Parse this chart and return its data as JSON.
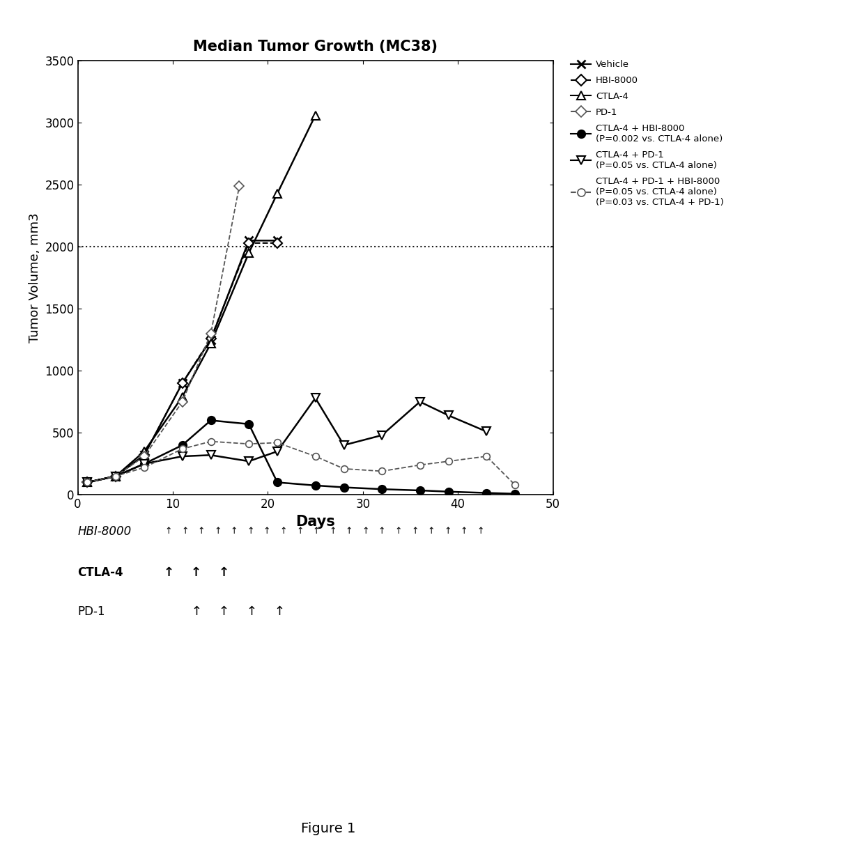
{
  "title": "Median Tumor Growth (MC38)",
  "xlabel": "Days",
  "ylabel": "Tumor Volume, mm3",
  "xlim": [
    0,
    50
  ],
  "ylim": [
    0,
    3500
  ],
  "yticks": [
    0,
    500,
    1000,
    1500,
    2000,
    2500,
    3000,
    3500
  ],
  "xticks": [
    0,
    10,
    20,
    30,
    40,
    50
  ],
  "hline_y": 2000,
  "series": {
    "Vehicle": {
      "x": [
        1,
        4,
        7,
        11,
        14,
        18,
        21
      ],
      "y": [
        100,
        150,
        320,
        900,
        1250,
        2050,
        2050
      ],
      "marker": "x",
      "linestyle": "-",
      "color": "#000000",
      "markersize": 9,
      "linewidth": 1.8,
      "markerfacecolor": "#000000",
      "markeredgewidth": 2.0
    },
    "HBI-8000": {
      "x": [
        1,
        4,
        7,
        11,
        14,
        18,
        21
      ],
      "y": [
        100,
        150,
        320,
        900,
        1260,
        2030,
        2030
      ],
      "marker": "D",
      "linestyle": "--",
      "color": "#000000",
      "markersize": 7,
      "linewidth": 1.5,
      "markerfacecolor": "white",
      "markeredgewidth": 1.5
    },
    "CTLA-4": {
      "x": [
        1,
        4,
        7,
        11,
        14,
        18,
        21,
        25
      ],
      "y": [
        100,
        150,
        350,
        790,
        1220,
        1950,
        2430,
        3060
      ],
      "marker": "^",
      "linestyle": "-",
      "color": "#000000",
      "markersize": 9,
      "linewidth": 1.8,
      "markerfacecolor": "white",
      "markeredgewidth": 1.5
    },
    "PD-1": {
      "x": [
        1,
        4,
        7,
        11,
        14,
        17
      ],
      "y": [
        100,
        150,
        310,
        750,
        1300,
        2490
      ],
      "marker": "D",
      "linestyle": "--",
      "color": "#555555",
      "markersize": 7,
      "linewidth": 1.3,
      "markerfacecolor": "white",
      "markeredgewidth": 1.2
    },
    "CTLA-4 + HBI-8000": {
      "x": [
        1,
        4,
        7,
        11,
        14,
        18,
        21,
        25,
        28,
        32,
        36,
        39,
        43,
        46
      ],
      "y": [
        100,
        150,
        250,
        400,
        600,
        570,
        100,
        75,
        60,
        45,
        35,
        25,
        15,
        8
      ],
      "marker": "o",
      "linestyle": "-",
      "color": "#000000",
      "markersize": 8,
      "linewidth": 1.8,
      "markerfacecolor": "#000000",
      "markeredgewidth": 1.5
    },
    "CTLA-4 + PD-1": {
      "x": [
        1,
        4,
        7,
        11,
        14,
        18,
        21,
        25,
        28,
        32,
        36,
        39,
        43
      ],
      "y": [
        100,
        150,
        250,
        310,
        320,
        270,
        350,
        780,
        400,
        480,
        750,
        640,
        510
      ],
      "marker": "v",
      "linestyle": "-",
      "color": "#000000",
      "markersize": 9,
      "linewidth": 1.8,
      "markerfacecolor": "white",
      "markeredgewidth": 1.5
    },
    "CTLA-4 + PD-1 + HBI-8000": {
      "x": [
        1,
        4,
        7,
        11,
        14,
        18,
        21,
        25,
        28,
        32,
        36,
        39,
        43,
        46
      ],
      "y": [
        100,
        150,
        220,
        370,
        430,
        410,
        420,
        310,
        210,
        190,
        240,
        270,
        310,
        80
      ],
      "marker": "o",
      "linestyle": "--",
      "color": "#555555",
      "markersize": 7,
      "linewidth": 1.3,
      "markerfacecolor": "white",
      "markeredgewidth": 1.2
    }
  },
  "legend_entries": [
    {
      "label": "Vehicle",
      "marker": "x",
      "linestyle": "-",
      "color": "#000000",
      "markerfacecolor": "#000000",
      "mew": 2.0
    },
    {
      "label": "HBI-8000",
      "marker": "D",
      "linestyle": "--",
      "color": "#000000",
      "markerfacecolor": "white",
      "mew": 1.5
    },
    {
      "label": "CTLA-4",
      "marker": "^",
      "linestyle": "-",
      "color": "#000000",
      "markerfacecolor": "white",
      "mew": 1.5
    },
    {
      "label": "PD-1",
      "marker": "D",
      "linestyle": "--",
      "color": "#555555",
      "markerfacecolor": "white",
      "mew": 1.2
    },
    {
      "label": "CTLA-4 + HBI-8000\n(P=0.002 vs. CTLA-4 alone)",
      "marker": "o",
      "linestyle": "-",
      "color": "#000000",
      "markerfacecolor": "#000000",
      "mew": 1.5
    },
    {
      "label": "CTLA-4 + PD-1\n(P=0.05 vs. CTLA-4 alone)",
      "marker": "v",
      "linestyle": "-",
      "color": "#000000",
      "markerfacecolor": "white",
      "mew": 1.5
    },
    {
      "label": "CTLA-4 + PD-1 + HBI-8000\n(P=0.05 vs. CTLA-4 alone)\n(P=0.03 vs. CTLA-4 + PD-1)",
      "marker": "o",
      "linestyle": "--",
      "color": "#555555",
      "markerfacecolor": "white",
      "mew": 1.2
    }
  ],
  "figure1_label": "Figure 1",
  "background_color": "#ffffff",
  "hbi_n_arrows": 20,
  "ctla_n_arrows": 3,
  "pd1_n_arrows": 4
}
